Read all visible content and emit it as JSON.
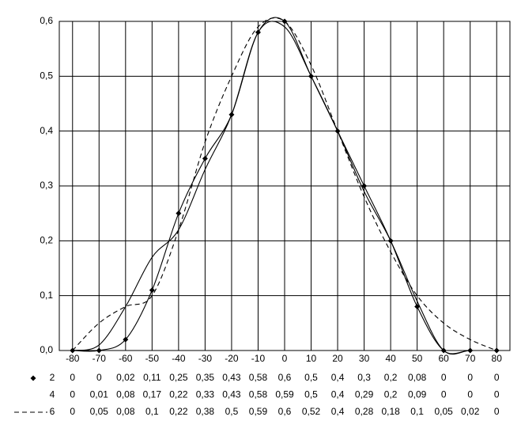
{
  "chart_data": {
    "type": "line",
    "categories": [
      -80,
      -70,
      -60,
      -50,
      -40,
      -30,
      -20,
      -10,
      0,
      10,
      20,
      30,
      40,
      50,
      60,
      70,
      80
    ],
    "ylim": [
      0,
      0.6
    ],
    "yticks": [
      {
        "value": 0,
        "label": "0,0"
      },
      {
        "value": 0.1,
        "label": "0,1"
      },
      {
        "value": 0.2,
        "label": "0,2"
      },
      {
        "value": 0.3,
        "label": "0,3"
      },
      {
        "value": 0.4,
        "label": "0,4"
      },
      {
        "value": 0.5,
        "label": "0,5"
      },
      {
        "value": 0.6,
        "label": "0,6"
      }
    ],
    "grid": true,
    "series": [
      {
        "name": "2",
        "color": "#000000",
        "marker": "diamond",
        "dash": "none",
        "values": [
          0,
          0,
          0.02,
          0.11,
          0.25,
          0.35,
          0.43,
          0.58,
          0.6,
          0.5,
          0.4,
          0.3,
          0.2,
          0.08,
          0,
          0,
          0
        ],
        "value_labels": [
          "0",
          "0",
          "0,02",
          "0,11",
          "0,25",
          "0,35",
          "0,43",
          "0,58",
          "0,6",
          "0,5",
          "0,4",
          "0,3",
          "0,2",
          "0,08",
          "0",
          "0",
          "0"
        ]
      },
      {
        "name": "4",
        "color": "#000000",
        "marker": "none",
        "dash": "none",
        "values": [
          0,
          0.01,
          0.08,
          0.17,
          0.22,
          0.33,
          0.43,
          0.58,
          0.59,
          0.5,
          0.4,
          0.29,
          0.2,
          0.09,
          0,
          0,
          0
        ],
        "value_labels": [
          "0",
          "0,01",
          "0,08",
          "0,17",
          "0,22",
          "0,33",
          "0,43",
          "0,58",
          "0,59",
          "0,5",
          "0,4",
          "0,29",
          "0,2",
          "0,09",
          "0",
          "0",
          "0"
        ]
      },
      {
        "name": "6",
        "color": "#000000",
        "marker": "none",
        "dash": "6 4",
        "values": [
          0,
          0.05,
          0.08,
          0.1,
          0.22,
          0.38,
          0.5,
          0.59,
          0.6,
          0.52,
          0.4,
          0.28,
          0.18,
          0.1,
          0.05,
          0.02,
          0
        ],
        "value_labels": [
          "0",
          "0,05",
          "0,08",
          "0,1",
          "0,22",
          "0,38",
          "0,5",
          "0,59",
          "0,6",
          "0,52",
          "0,4",
          "0,28",
          "0,18",
          "0,1",
          "0,05",
          "0,02",
          "0"
        ]
      }
    ]
  }
}
